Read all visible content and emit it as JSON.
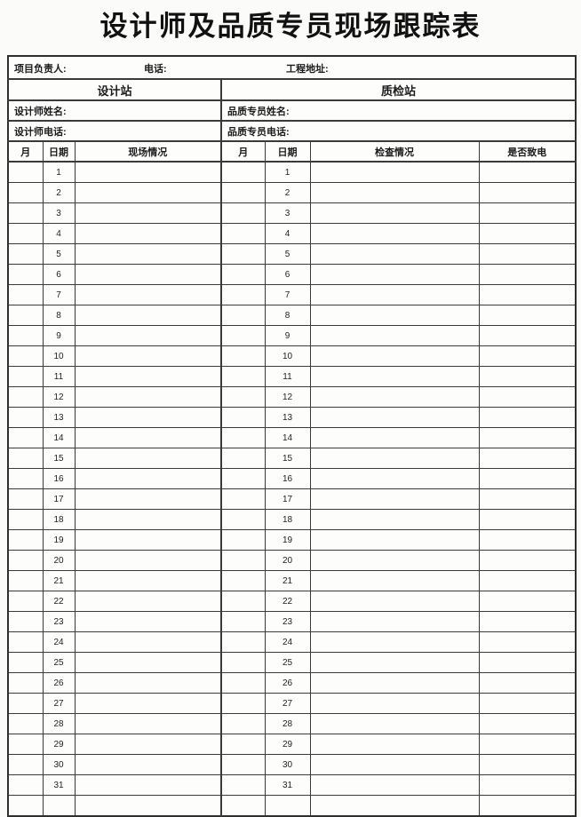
{
  "page": {
    "title": "设计师及品质专员现场跟踪表"
  },
  "info_row": {
    "project_manager_label": "项目负责人:",
    "phone_label": "电话:",
    "address_label": "工程地址:"
  },
  "sections": {
    "left": "设计站",
    "right": "质检站"
  },
  "fields": {
    "designer_name_label": "设计师姓名:",
    "designer_phone_label": "设计师电话:",
    "quality_name_label": "品质专员姓名:",
    "quality_phone_label": "品质专员电话:"
  },
  "column_headers": [
    "月",
    "日期",
    "现场情况",
    "月",
    "日期",
    "检查情况",
    "是否致电"
  ],
  "table": {
    "days": [
      "1",
      "2",
      "3",
      "4",
      "5",
      "6",
      "7",
      "8",
      "9",
      "10",
      "11",
      "12",
      "13",
      "14",
      "15",
      "16",
      "17",
      "18",
      "19",
      "20",
      "21",
      "22",
      "23",
      "24",
      "25",
      "26",
      "27",
      "28",
      "29",
      "30",
      "31",
      ""
    ],
    "empty_cell_value": ""
  },
  "colors": {
    "border": "#3a3a3a",
    "page_background": "#fbfbf9",
    "text": "#1b1b1b"
  }
}
